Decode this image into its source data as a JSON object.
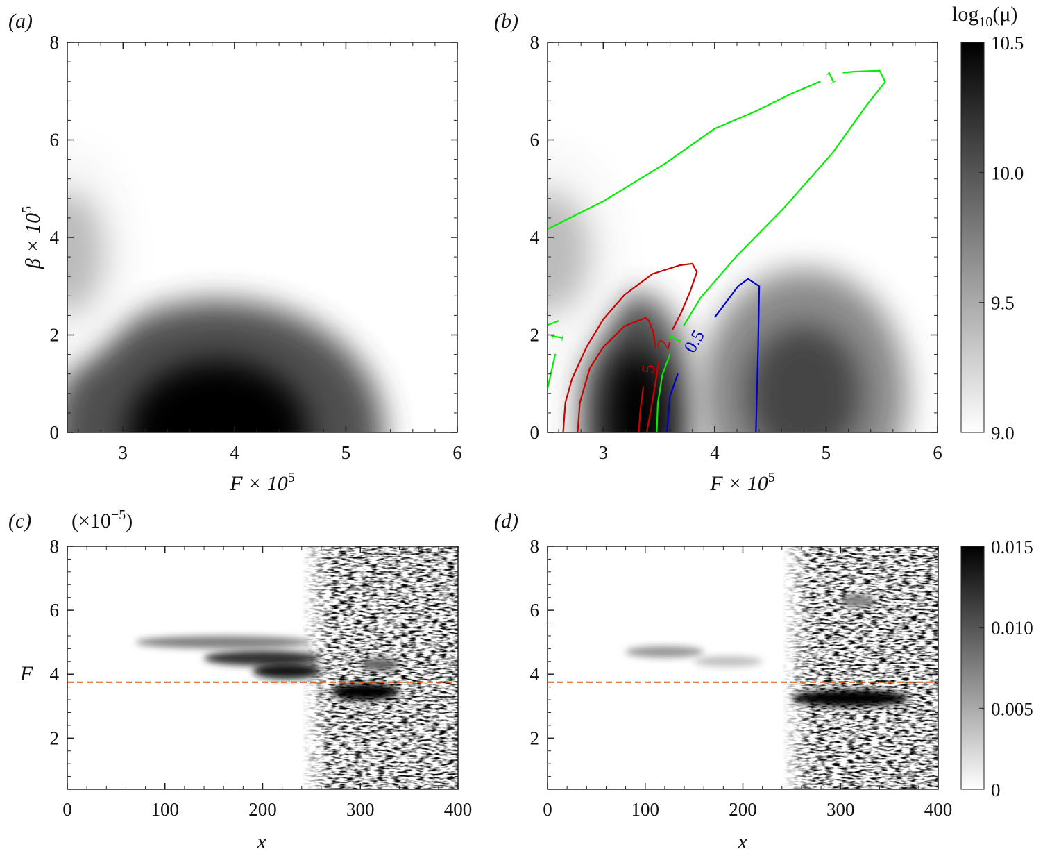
{
  "chart_data": [
    {
      "panel": "(a)",
      "type": "heatmap",
      "xlabel": "F × 10",
      "xlabel_exp": "5",
      "ylabel": "β × 10",
      "ylabel_exp": "5",
      "xlim": [
        2.5,
        6
      ],
      "ylim": [
        0,
        8
      ],
      "xticks": [
        "3",
        "4",
        "5",
        "6"
      ],
      "yticks": [
        "0",
        "2",
        "4",
        "6",
        "8"
      ],
      "colorscale": "white-to-black",
      "peaks_estimated": [
        {
          "F": 3.85,
          "beta": 0.0,
          "log10_mu": 10.5,
          "F_extent": [
            3.1,
            5.6
          ],
          "beta_extent": [
            0,
            3.6
          ]
        },
        {
          "F": 2.5,
          "beta": 3.7,
          "log10_mu": 9.4,
          "F_extent": [
            2.5,
            3.2
          ],
          "beta_extent": [
            2.2,
            5.2
          ]
        }
      ]
    },
    {
      "panel": "(b)",
      "type": "heatmap",
      "xlabel": "F × 10",
      "xlabel_exp": "5",
      "xlim": [
        2.5,
        6
      ],
      "ylim": [
        0,
        8
      ],
      "xticks": [
        "3",
        "4",
        "5",
        "6"
      ],
      "yticks": [
        "0",
        "2",
        "4",
        "6",
        "8"
      ],
      "colorbar": {
        "label": "log",
        "label_sub": "10",
        "label_tail": "(μ)",
        "range": [
          9.0,
          10.5
        ],
        "ticks": [
          "9.0",
          "9.5",
          "10.0",
          "10.5"
        ]
      },
      "peaks_estimated": [
        {
          "F": 3.3,
          "beta": 0.3,
          "log10_mu": 10.5,
          "F_extent": [
            2.8,
            3.9
          ],
          "beta_extent": [
            0,
            3.4
          ]
        },
        {
          "F": 4.8,
          "beta": 0.8,
          "log10_mu": 10.1,
          "F_extent": [
            3.7,
            5.6
          ],
          "beta_extent": [
            0,
            3.4
          ]
        },
        {
          "F": 2.5,
          "beta": 3.7,
          "log10_mu": 9.4,
          "F_extent": [
            2.5,
            3.3
          ],
          "beta_extent": [
            2.2,
            5.2
          ]
        }
      ],
      "contours": [
        {
          "level": "1",
          "color": "#00ee00",
          "points": [
            [
              2.5,
              4.17
            ],
            [
              3.0,
              4.74
            ],
            [
              3.56,
              5.52
            ],
            [
              4.0,
              6.23
            ],
            [
              4.37,
              6.59
            ],
            [
              4.69,
              6.95
            ],
            [
              4.95,
              7.2
            ]
          ]
        },
        {
          "level": "1",
          "color": "#00ee00",
          "points": [
            [
              5.15,
              7.38
            ],
            [
              5.25,
              7.4
            ],
            [
              5.48,
              7.42
            ],
            [
              5.53,
              7.19
            ],
            [
              5.37,
              6.73
            ],
            [
              5.06,
              5.74
            ],
            [
              4.62,
              4.6
            ],
            [
              4.19,
              3.6
            ],
            [
              3.87,
              2.75
            ],
            [
              3.72,
              2.18
            ]
          ]
        },
        {
          "level": "1",
          "color": "#00ee00",
          "points": [
            [
              3.6,
              1.61
            ],
            [
              3.53,
              1.18
            ],
            [
              3.49,
              0.61
            ],
            [
              3.48,
              0
            ]
          ]
        },
        {
          "level": "1",
          "color": "#00ee00",
          "points": [
            [
              2.5,
              2.2
            ],
            [
              2.6,
              2.29
            ]
          ]
        },
        {
          "level": "1",
          "color": "#00ee00",
          "points": [
            [
              2.57,
              1.61
            ],
            [
              2.5,
              0.9
            ]
          ]
        },
        {
          "level": "2",
          "color": "#cc0000",
          "points": [
            [
              2.64,
              0
            ],
            [
              2.66,
              0.61
            ],
            [
              2.72,
              1.1
            ],
            [
              2.85,
              1.75
            ],
            [
              3.0,
              2.32
            ],
            [
              3.19,
              2.82
            ],
            [
              3.44,
              3.25
            ],
            [
              3.69,
              3.43
            ],
            [
              3.8,
              3.46
            ],
            [
              3.84,
              3.29
            ],
            [
              3.78,
              2.89
            ],
            [
              3.7,
              2.46
            ],
            [
              3.62,
              2.1
            ]
          ]
        },
        {
          "level": "2",
          "color": "#cc0000",
          "points": [
            [
              3.5,
              1.47
            ],
            [
              3.44,
              0.61
            ],
            [
              3.39,
              0
            ]
          ]
        },
        {
          "level": "5",
          "color": "#cc0000",
          "points": [
            [
              2.77,
              0
            ],
            [
              2.79,
              0.61
            ],
            [
              2.88,
              1.32
            ],
            [
              3.0,
              1.75
            ],
            [
              3.19,
              2.18
            ],
            [
              3.38,
              2.35
            ],
            [
              3.41,
              2.29
            ],
            [
              3.45,
              2.06
            ],
            [
              3.47,
              1.72
            ]
          ]
        },
        {
          "level": "5",
          "color": "#cc0000",
          "points": [
            [
              3.36,
              0.95
            ],
            [
              3.33,
              0.4
            ],
            [
              3.32,
              0
            ]
          ]
        },
        {
          "level": "0.5",
          "color": "#0000cc",
          "points": [
            [
              4.0,
              2.36
            ],
            [
              4.21,
              3.0
            ],
            [
              4.3,
              3.15
            ],
            [
              4.4,
              3.0
            ],
            [
              4.39,
              1.75
            ],
            [
              4.37,
              0
            ]
          ]
        },
        {
          "level": "0.5",
          "color": "#0000cc",
          "points": [
            [
              3.67,
              1.21
            ],
            [
              3.6,
              0.75
            ],
            [
              3.57,
              0
            ]
          ]
        }
      ],
      "contour_labels": [
        {
          "text": "1",
          "color": "#00ee00",
          "F": 5.05,
          "beta": 7.25,
          "angle": -25
        },
        {
          "text": "1",
          "color": "#00ee00",
          "F": 2.6,
          "beta": 1.95,
          "angle": -80
        },
        {
          "text": "5",
          "color": "#cc0000",
          "F": 3.42,
          "beta": 1.3,
          "angle": -85
        },
        {
          "text": "2",
          "color": "#cc0000",
          "F": 3.56,
          "beta": 1.8,
          "angle": -75
        },
        {
          "text": "1",
          "color": "#00ee00",
          "F": 3.66,
          "beta": 1.9,
          "angle": -60
        },
        {
          "text": "0.5",
          "color": "#0000cc",
          "F": 3.83,
          "beta": 1.85,
          "angle": -60
        }
      ]
    },
    {
      "panel": "(c)",
      "type": "heatmap",
      "xlabel": "x",
      "ylabel": "F",
      "scale_note": "(×10",
      "scale_note_exp": "−5",
      "scale_note_tail": ")",
      "xlim": [
        0,
        400
      ],
      "ylim": [
        0.4,
        8
      ],
      "xticks": [
        "0",
        "100",
        "200",
        "300",
        "400"
      ],
      "yticks": [
        "2",
        "4",
        "6",
        "8"
      ],
      "reference_line": {
        "F": 3.75,
        "color": "#e0501a",
        "style": "dashed"
      },
      "noise_onset_x": 250,
      "streaks_estimated": [
        {
          "x": [
            70,
            250
          ],
          "F": 5.0,
          "intensity": 0.5
        },
        {
          "x": [
            140,
            260
          ],
          "F": 4.5,
          "intensity": 0.8
        },
        {
          "x": [
            190,
            260
          ],
          "F": 4.1,
          "intensity": 0.9
        },
        {
          "x": [
            270,
            340
          ],
          "F": 3.45,
          "intensity": 1.0
        },
        {
          "x": [
            300,
            340
          ],
          "F": 4.3,
          "intensity": 0.6
        }
      ]
    },
    {
      "panel": "(d)",
      "type": "heatmap",
      "xlabel": "x",
      "xlim": [
        0,
        400
      ],
      "ylim": [
        0.4,
        8
      ],
      "xticks": [
        "0",
        "100",
        "200",
        "300",
        "400"
      ],
      "yticks": [
        "2",
        "4",
        "6",
        "8"
      ],
      "reference_line": {
        "F": 3.75,
        "color": "#e0501a",
        "style": "dashed"
      },
      "noise_onset_x": 260,
      "colorbar": {
        "range": [
          0,
          0.015
        ],
        "ticks": [
          "0",
          "0.005",
          "0.010",
          "0.015"
        ]
      },
      "streaks_estimated": [
        {
          "x": [
            80,
            160
          ],
          "F": 4.7,
          "intensity": 0.4
        },
        {
          "x": [
            250,
            370
          ],
          "F": 3.25,
          "intensity": 1.0
        },
        {
          "x": [
            300,
            335
          ],
          "F": 6.3,
          "intensity": 0.5
        },
        {
          "x": [
            150,
            220
          ],
          "F": 4.4,
          "intensity": 0.25
        }
      ]
    }
  ]
}
